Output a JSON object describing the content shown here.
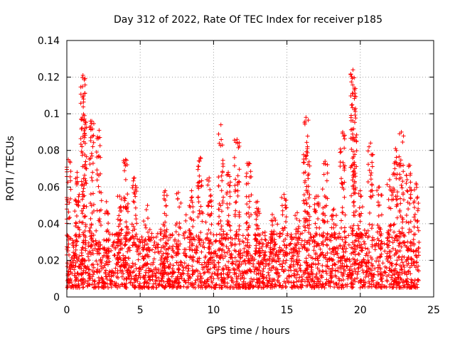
{
  "chart_data": {
    "type": "scatter",
    "title": "Day 312 of 2022, Rate Of TEC Index for receiver p185",
    "xlabel": "GPS time / hours",
    "ylabel": "ROTI / TECUs",
    "xlim": [
      0,
      25
    ],
    "ylim": [
      0,
      0.14
    ],
    "x_ticks": [
      0,
      5,
      10,
      15,
      20,
      25
    ],
    "x_tick_labels": [
      "0",
      "5",
      "10",
      "15",
      "20",
      "25"
    ],
    "y_ticks": [
      0,
      0.02,
      0.04,
      0.06,
      0.08,
      0.1,
      0.12,
      0.14
    ],
    "y_tick_labels": [
      "0",
      "0.02",
      "0.04",
      "0.06",
      "0.08",
      "0.1",
      "0.12",
      "0.14"
    ],
    "grid": true,
    "marker": "+",
    "color": "#ff0000",
    "data_x_range": [
      0,
      24
    ],
    "typical_range": [
      0.005,
      0.035
    ],
    "series": [
      {
        "name": "ROTI",
        "peaks": [
          {
            "x": 0.1,
            "y": 0.075
          },
          {
            "x": 0.7,
            "y": 0.068
          },
          {
            "x": 1.1,
            "y": 0.121
          },
          {
            "x": 1.2,
            "y": 0.099
          },
          {
            "x": 1.7,
            "y": 0.096
          },
          {
            "x": 2.2,
            "y": 0.091
          },
          {
            "x": 2.7,
            "y": 0.052
          },
          {
            "x": 3.6,
            "y": 0.055
          },
          {
            "x": 4.0,
            "y": 0.075
          },
          {
            "x": 4.6,
            "y": 0.065
          },
          {
            "x": 5.5,
            "y": 0.05
          },
          {
            "x": 6.7,
            "y": 0.058
          },
          {
            "x": 7.6,
            "y": 0.057
          },
          {
            "x": 8.5,
            "y": 0.058
          },
          {
            "x": 9.1,
            "y": 0.076
          },
          {
            "x": 9.7,
            "y": 0.065
          },
          {
            "x": 10.5,
            "y": 0.094
          },
          {
            "x": 11.0,
            "y": 0.068
          },
          {
            "x": 11.6,
            "y": 0.086
          },
          {
            "x": 12.4,
            "y": 0.073
          },
          {
            "x": 13.0,
            "y": 0.052
          },
          {
            "x": 14.0,
            "y": 0.045
          },
          {
            "x": 14.8,
            "y": 0.056
          },
          {
            "x": 15.7,
            "y": 0.046
          },
          {
            "x": 16.3,
            "y": 0.098
          },
          {
            "x": 16.4,
            "y": 0.082
          },
          {
            "x": 17.0,
            "y": 0.055
          },
          {
            "x": 17.6,
            "y": 0.074
          },
          {
            "x": 18.2,
            "y": 0.048
          },
          {
            "x": 18.8,
            "y": 0.09
          },
          {
            "x": 19.5,
            "y": 0.124
          },
          {
            "x": 19.6,
            "y": 0.113
          },
          {
            "x": 20.0,
            "y": 0.058
          },
          {
            "x": 20.7,
            "y": 0.084
          },
          {
            "x": 21.3,
            "y": 0.06
          },
          {
            "x": 22.0,
            "y": 0.064
          },
          {
            "x": 22.4,
            "y": 0.081
          },
          {
            "x": 22.8,
            "y": 0.09
          },
          {
            "x": 23.3,
            "y": 0.072
          },
          {
            "x": 23.8,
            "y": 0.062
          }
        ]
      }
    ]
  }
}
